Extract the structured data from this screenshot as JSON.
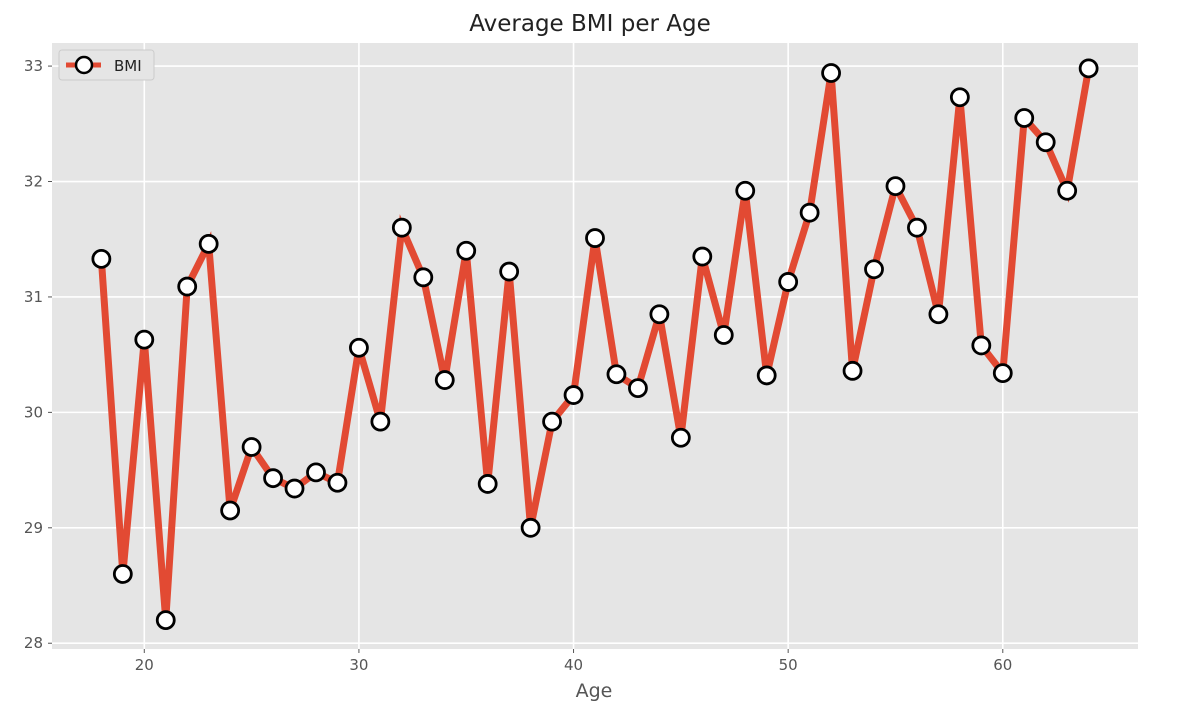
{
  "chart_data": {
    "type": "line",
    "title": "Average BMI per Age",
    "xlabel": "Age",
    "ylabel": "",
    "xlim": [
      15.7,
      66.3
    ],
    "ylim": [
      27.95,
      33.2
    ],
    "xticks": [
      20,
      30,
      40,
      50,
      60
    ],
    "yticks": [
      28,
      29,
      30,
      31,
      32,
      33
    ],
    "xtick_labels": [
      "20",
      "30",
      "40",
      "50",
      "60"
    ],
    "ytick_labels": [
      "28",
      "29",
      "30",
      "31",
      "32",
      "33"
    ],
    "grid": true,
    "legend_position": "top-left",
    "colors": {
      "line": "#e24a33",
      "marker_face": "#ffffff",
      "marker_edge": "#000000",
      "plot_background": "#e5e5e5",
      "grid": "#ffffff"
    },
    "series": [
      {
        "name": "BMI",
        "x": [
          18,
          19,
          20,
          21,
          22,
          23,
          24,
          25,
          26,
          27,
          28,
          29,
          30,
          31,
          32,
          33,
          34,
          35,
          36,
          37,
          38,
          39,
          40,
          41,
          42,
          43,
          44,
          45,
          46,
          47,
          48,
          49,
          50,
          51,
          52,
          53,
          54,
          55,
          56,
          57,
          58,
          59,
          60,
          61,
          62,
          63,
          64
        ],
        "y": [
          31.33,
          28.6,
          30.63,
          28.2,
          31.09,
          31.46,
          29.15,
          29.7,
          29.43,
          29.34,
          29.48,
          29.39,
          30.56,
          29.92,
          31.6,
          31.17,
          30.28,
          31.4,
          29.38,
          31.22,
          29.0,
          29.92,
          30.15,
          31.51,
          30.33,
          30.21,
          30.85,
          29.78,
          31.35,
          30.67,
          31.92,
          30.32,
          31.13,
          31.73,
          32.94,
          30.36,
          31.24,
          31.96,
          31.6,
          30.85,
          32.73,
          30.58,
          30.34,
          32.55,
          32.34,
          31.92,
          32.98
        ]
      }
    ]
  }
}
